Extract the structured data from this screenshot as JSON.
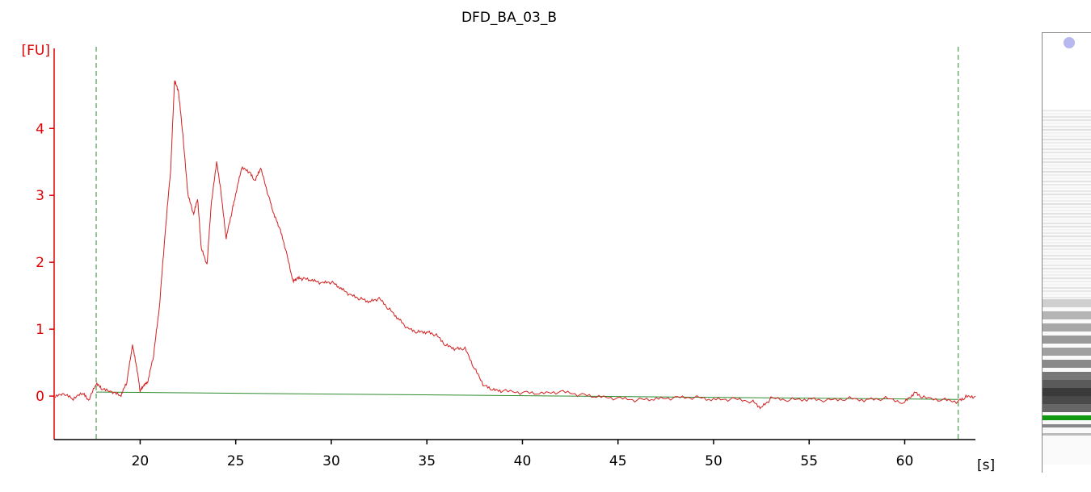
{
  "chart_data": {
    "type": "line",
    "title": "DFD_BA_03_B",
    "ylabel": "[FU]",
    "xlabel": "[s]",
    "xlim": [
      15.5,
      63.7
    ],
    "ylim": [
      -0.65,
      5.1
    ],
    "xticks": [
      20,
      25,
      30,
      35,
      40,
      45,
      50,
      55,
      60
    ],
    "yticks": [
      0,
      1,
      2,
      3,
      4
    ],
    "markers": [
      17.7,
      62.8
    ],
    "baseline": {
      "x": [
        17.7,
        62.8
      ],
      "y": [
        0.06,
        -0.05
      ]
    },
    "series": [
      {
        "x": [
          15.5,
          16,
          16.5,
          17,
          17.3,
          17.7,
          18,
          18.5,
          19,
          19.3,
          19.6,
          19.8,
          20,
          20.2,
          20.4,
          20.7,
          21,
          21.3,
          21.6,
          21.8,
          22,
          22.2,
          22.5,
          22.8,
          23,
          23.2,
          23.5,
          23.7,
          24,
          24.2,
          24.5,
          24.8,
          25,
          25.3,
          25.7,
          26,
          26.3,
          26.7,
          27,
          27.3,
          27.6,
          28,
          28.2,
          28.5,
          29,
          29.5,
          30,
          30.5,
          31,
          31.5,
          32,
          32.5,
          33,
          33.5,
          34,
          34.5,
          35,
          35.5,
          36,
          36.5,
          37,
          37.5,
          38,
          38.5,
          39,
          40,
          41,
          42,
          43,
          44,
          45,
          46,
          47,
          48,
          49,
          50,
          51,
          52,
          52.5,
          53,
          54,
          55,
          56,
          57,
          58,
          59,
          60,
          60.5,
          61,
          62,
          62.8,
          63.2,
          63.7
        ],
        "y": [
          -0.02,
          0.02,
          -0.05,
          0.04,
          -0.08,
          0.18,
          0.1,
          0.05,
          0.0,
          0.2,
          0.75,
          0.45,
          0.07,
          0.15,
          0.2,
          0.6,
          1.3,
          2.4,
          3.4,
          4.7,
          4.55,
          4.0,
          3.0,
          2.7,
          2.95,
          2.2,
          1.95,
          2.8,
          3.5,
          3.1,
          2.35,
          2.75,
          3.0,
          3.4,
          3.35,
          3.2,
          3.4,
          3.0,
          2.7,
          2.5,
          2.2,
          1.7,
          1.75,
          1.75,
          1.72,
          1.68,
          1.7,
          1.6,
          1.5,
          1.45,
          1.4,
          1.45,
          1.3,
          1.15,
          1.0,
          0.95,
          0.95,
          0.9,
          0.75,
          0.7,
          0.7,
          0.4,
          0.15,
          0.08,
          0.07,
          0.05,
          0.03,
          0.06,
          0.02,
          -0.02,
          -0.04,
          -0.06,
          -0.05,
          -0.03,
          -0.02,
          -0.06,
          -0.05,
          -0.08,
          -0.18,
          -0.04,
          -0.06,
          -0.05,
          -0.07,
          -0.04,
          -0.06,
          -0.04,
          -0.1,
          0.05,
          -0.03,
          -0.06,
          -0.08,
          -0.02,
          0.0
        ]
      }
    ]
  },
  "colors": {
    "trace": "#d42020",
    "y_axis": "#e00000",
    "baseline": "#2e8b2e",
    "marker": "#2e8b2e",
    "lower_marker": "#119911",
    "upper_marker": "#b8b8f0"
  }
}
